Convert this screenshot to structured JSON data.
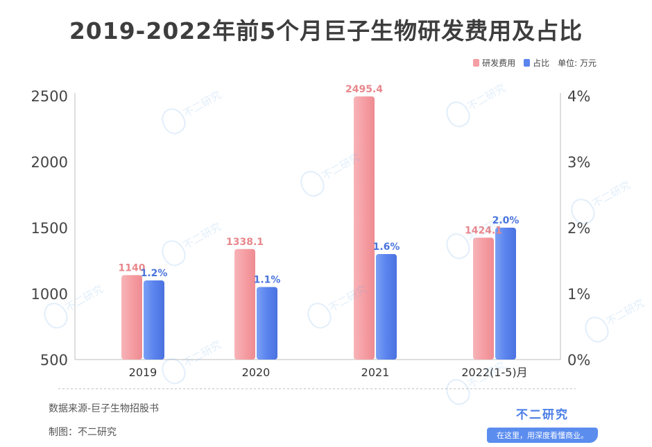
{
  "title": "2019-2022年前5个月巨子生物研发费用及占比",
  "legend": {
    "series1": "研发费用",
    "series2": "占比",
    "unit": "单位: 万元"
  },
  "colors": {
    "series1": "#f59ea3",
    "series2": "#5b84ee",
    "label1": "#e8878c",
    "label2": "#4a74dc"
  },
  "chart_data": {
    "type": "bar",
    "categories": [
      "2019",
      "2020",
      "2021",
      "2022(1-5)月"
    ],
    "series": [
      {
        "name": "研发费用",
        "values": [
          1140,
          1338.1,
          2495.4,
          1424.1
        ],
        "labels": [
          "1140",
          "1338.1",
          "2495.4",
          "1424.1"
        ],
        "axis": "left"
      },
      {
        "name": "占比",
        "values": [
          1.2,
          1.1,
          1.6,
          2.0
        ],
        "labels": [
          "1.2%",
          "1.1%",
          "1.6%",
          "2.0%"
        ],
        "axis": "right"
      }
    ],
    "y_left": {
      "range": [
        500,
        2500
      ],
      "ticks": [
        "500",
        "1000",
        "1500",
        "2000",
        "2500"
      ]
    },
    "y_right": {
      "range": [
        0,
        4
      ],
      "ticks": [
        "0%",
        "1%",
        "2%",
        "3%",
        "4%"
      ]
    },
    "grid": false,
    "legend_position": "top-right"
  },
  "footer": {
    "source": "数据来源-巨子生物招股书",
    "maker": "制图：不二研究"
  },
  "brand": {
    "name": "不二研究",
    "tagline": "在这里，用深度看懂商业。"
  },
  "watermark": "不二研究"
}
